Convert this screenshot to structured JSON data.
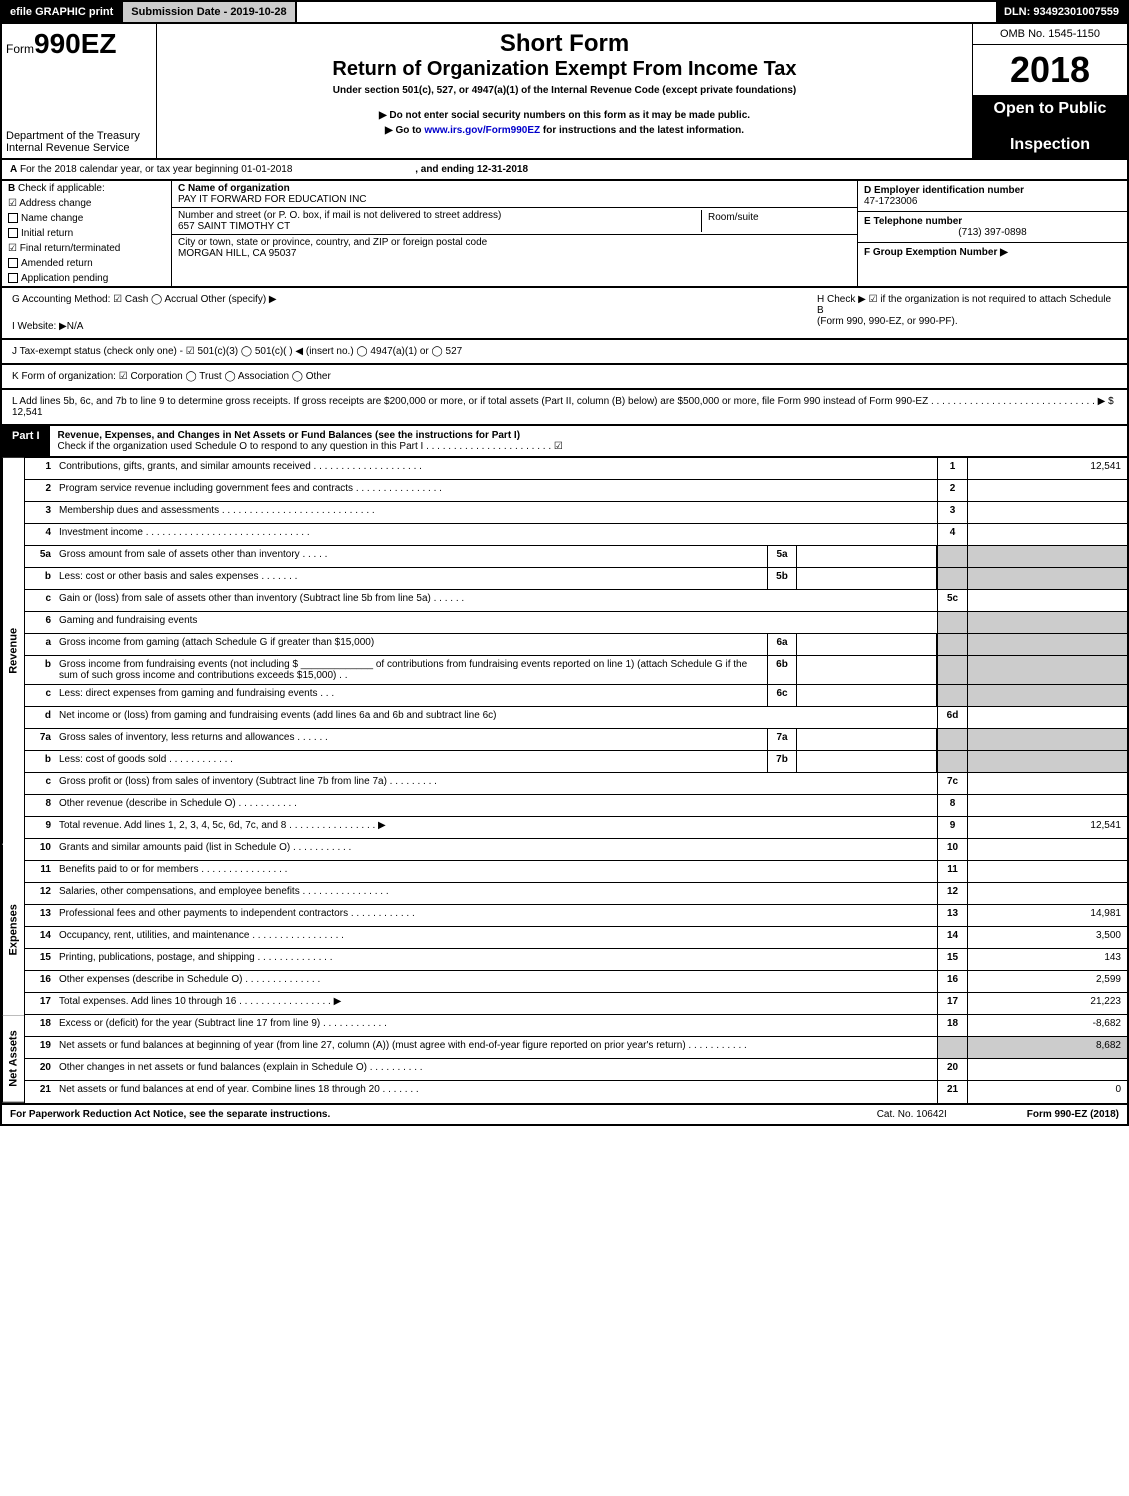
{
  "topbar": {
    "efile": "efile GRAPHIC print",
    "sub_date_label": "Submission Date - 2019-10-28",
    "dln": "DLN: 93492301007559"
  },
  "header": {
    "form_prefix": "Form",
    "form_no": "990EZ",
    "dept1": "Department of the Treasury",
    "dept2": "Internal Revenue Service",
    "short": "Short Form",
    "title": "Return of Organization Exempt From Income Tax",
    "subtitle": "Under section 501(c), 527, or 4947(a)(1) of the Internal Revenue Code (except private foundations)",
    "note1": "▶ Do not enter social security numbers on this form as it may be made public.",
    "note2": "▶ Go to www.irs.gov/Form990EZ for instructions and the latest information.",
    "omb": "OMB No. 1545-1150",
    "year": "2018",
    "open1": "Open to Public",
    "open2": "Inspection"
  },
  "lineA": {
    "label": "A",
    "text1": "For the 2018 calendar year, or tax year beginning 01-01-2018",
    "text2": ", and ending 12-31-2018"
  },
  "boxB": {
    "label": "B",
    "check": "Check if applicable:",
    "o1": "Address change",
    "o2": "Name change",
    "o3": "Initial return",
    "o4": "Final return/terminated",
    "o5": "Amended return",
    "o6": "Application pending"
  },
  "boxC": {
    "name_label": "C Name of organization",
    "name": "PAY IT FORWARD FOR EDUCATION INC",
    "addr_label": "Number and street (or P. O. box, if mail is not delivered to street address)",
    "addr": "657 SAINT TIMOTHY CT",
    "room_label": "Room/suite",
    "city_label": "City or town, state or province, country, and ZIP or foreign postal code",
    "city": "MORGAN HILL, CA  95037"
  },
  "boxD": {
    "d_label": "D Employer identification number",
    "d_val": "47-1723006",
    "e_label": "E Telephone number",
    "e_val": "(713) 397-0898",
    "f_label": "F Group Exemption Number   ▶"
  },
  "sec_gh": {
    "g": "G Accounting Method: ☑ Cash  ◯ Accrual  Other (specify) ▶",
    "i": "I Website: ▶N/A",
    "h1": "H  Check ▶ ☑ if the organization is not required to attach Schedule B",
    "h2": "(Form 990, 990-EZ, or 990-PF)."
  },
  "lineJ": "J Tax-exempt status (check only one) - ☑ 501(c)(3) ◯ 501(c)(  ) ◀ (insert no.) ◯ 4947(a)(1) or ◯ 527",
  "lineK": "K Form of organization: ☑ Corporation  ◯ Trust  ◯ Association  ◯ Other",
  "lineL": "L Add lines 5b, 6c, and 7b to line 9 to determine gross receipts. If gross receipts are $200,000 or more, or if total assets (Part II, column (B) below) are $500,000 or more, file Form 990 instead of Form 990-EZ . . . . . . . . . . . . . . . . . . . . . . . . . . . . . . ▶ $ 12,541",
  "part1": {
    "label": "Part I",
    "title": "Revenue, Expenses, and Changes in Net Assets or Fund Balances (see the instructions for Part I)",
    "sub": "Check if the organization used Schedule O to respond to any question in this Part I . . . . . . . . . . . . . . . . . . . . . . . ☑"
  },
  "side_rev": "Revenue",
  "side_exp": "Expenses",
  "side_na": "Net Assets",
  "rows": {
    "r1": {
      "n": "1",
      "d": "Contributions, gifts, grants, and similar amounts received . . . . . . . . . . . . . . . . . . . .",
      "amt": "12,541"
    },
    "r2": {
      "n": "2",
      "d": "Program service revenue including government fees and contracts . . . . . . . . . . . . . . . ."
    },
    "r3": {
      "n": "3",
      "d": "Membership dues and assessments . . . . . . . . . . . . . . . . . . . . . . . . . . . ."
    },
    "r4": {
      "n": "4",
      "d": "Investment income . . . . . . . . . . . . . . . . . . . . . . . . . . . . . ."
    },
    "r5a": {
      "n": "5a",
      "d": "Gross amount from sale of assets other than inventory . . . . .",
      "mid": "5a"
    },
    "r5b": {
      "n": "b",
      "d": "Less: cost or other basis and sales expenses . . . . . . .",
      "mid": "5b"
    },
    "r5c": {
      "n": "c",
      "d": "Gain or (loss) from sale of assets other than inventory (Subtract line 5b from line 5a)         . . . . . .",
      "rn": "5c"
    },
    "r6": {
      "n": "6",
      "d": "Gaming and fundraising events"
    },
    "r6a": {
      "n": "a",
      "d": "Gross income from gaming (attach Schedule G if greater than $15,000)",
      "mid": "6a"
    },
    "r6b": {
      "n": "b",
      "d": "Gross income from fundraising events (not including $ _____________ of contributions from fundraising events reported on line 1) (attach Schedule G if the sum of such gross income and contributions exceeds $15,000)   . .",
      "mid": "6b"
    },
    "r6c": {
      "n": "c",
      "d": "Less: direct expenses from gaming and fundraising events    . . .",
      "mid": "6c"
    },
    "r6d": {
      "n": "d",
      "d": "Net income or (loss) from gaming and fundraising events (add lines 6a and 6b and subtract line 6c)",
      "rn": "6d"
    },
    "r7a": {
      "n": "7a",
      "d": "Gross sales of inventory, less returns and allowances        . . . . . .",
      "mid": "7a"
    },
    "r7b": {
      "n": "b",
      "d": "Less: cost of goods sold                . . . . . . . . . . . .",
      "mid": "7b"
    },
    "r7c": {
      "n": "c",
      "d": "Gross profit or (loss) from sales of inventory (Subtract line 7b from line 7a)        . . . . . . . . .",
      "rn": "7c"
    },
    "r8": {
      "n": "8",
      "d": "Other revenue (describe in Schedule O)          . . . . . . . . . . ."
    },
    "r9": {
      "n": "9",
      "d": "Total revenue. Add lines 1, 2, 3, 4, 5c, 6d, 7c, and 8    . . . . . . . . . . . . . . . . ▶",
      "amt": "12,541"
    },
    "r10": {
      "n": "10",
      "d": "Grants and similar amounts paid (list in Schedule O)       . . . . . . . . . . ."
    },
    "r11": {
      "n": "11",
      "d": "Benefits paid to or for members       . . . . . . . . . . . . . . . ."
    },
    "r12": {
      "n": "12",
      "d": "Salaries, other compensations, and employee benefits   . . . . . . . . . . . . . . . ."
    },
    "r13": {
      "n": "13",
      "d": "Professional fees and other payments to independent contractors   . . . . . . . . . . . .",
      "amt": "14,981"
    },
    "r14": {
      "n": "14",
      "d": "Occupancy, rent, utilities, and maintenance   . . . . . . . . . . . . . . . . .",
      "amt": "3,500"
    },
    "r15": {
      "n": "15",
      "d": "Printing, publications, postage, and shipping    . . . . . . . . . . . . . .",
      "amt": "143"
    },
    "r16": {
      "n": "16",
      "d": "Other expenses (describe in Schedule O)     . . . . . . . . . . . . . .",
      "amt": "2,599"
    },
    "r17": {
      "n": "17",
      "d": "Total expenses. Add lines 10 through 16    . . . . . . . . . . . . . . . . . ▶",
      "amt": "21,223"
    },
    "r18": {
      "n": "18",
      "d": "Excess or (deficit) for the year (Subtract line 17 from line 9)     . . . . . . . . . . . .",
      "amt": "-8,682"
    },
    "r19": {
      "n": "19",
      "d": "Net assets or fund balances at beginning of year (from line 27, column (A)) (must agree with end-of-year figure reported on prior year's return)     . . . . . . . . . . .",
      "amt": "8,682"
    },
    "r20": {
      "n": "20",
      "d": "Other changes in net assets or fund balances (explain in Schedule O)    . . . . . . . . . ."
    },
    "r21": {
      "n": "21",
      "d": "Net assets or fund balances at end of year. Combine lines 18 through 20     . . . . . . .",
      "amt": "0"
    }
  },
  "footer": {
    "l": "For Paperwork Reduction Act Notice, see the separate instructions.",
    "c": "Cat. No. 10642I",
    "r": "Form 990-EZ (2018)"
  }
}
